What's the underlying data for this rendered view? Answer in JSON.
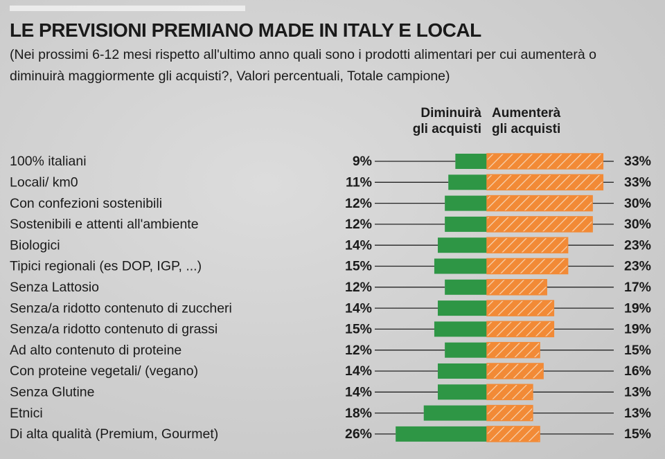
{
  "chart_data": {
    "type": "diverging-bar",
    "title": "LE PREVISIONI PREMIANO MADE IN ITALY E LOCAL",
    "subtitle": "(Nei prossimi 6-12 mesi rispetto all'ultimo anno quali sono i prodotti alimentari per cui aumenterà o diminuirà maggiormente gli acquisti?, Valori percentuali, Totale campione)",
    "categories": [
      "100% italiani",
      "Locali/ km0",
      "Con confezioni sostenibili",
      "Sostenibili e attenti all'ambiente",
      "Biologici",
      "Tipici regionali (es DOP, IGP, ...)",
      "Senza Lattosio",
      "Senza/a ridotto contenuto di zuccheri",
      "Senza/a ridotto contenuto di grassi",
      "Ad alto contenuto di proteine",
      "Con proteine vegetali/ (vegano)",
      "Senza Glutine",
      "Etnici",
      "Di alta qualità (Premium, Gourmet)"
    ],
    "series": [
      {
        "name": "Diminuirà\ngli acquisti",
        "color": "#2e9645",
        "values": [
          9,
          11,
          12,
          12,
          14,
          15,
          12,
          14,
          15,
          12,
          14,
          14,
          18,
          26
        ],
        "value_labels": [
          "9%",
          "11%",
          "12%",
          "12%",
          "14%",
          "15%",
          "12%",
          "14%",
          "15%",
          "12%",
          "14%",
          "14%",
          "18%",
          "26%"
        ]
      },
      {
        "name": "Aumenterà\ngli acquisti",
        "color": "#f28a36",
        "values": [
          33,
          33,
          30,
          30,
          23,
          23,
          17,
          19,
          19,
          15,
          16,
          13,
          13,
          15
        ],
        "value_labels": [
          "33%",
          "33%",
          "30%",
          "30%",
          "23%",
          "23%",
          "17%",
          "19%",
          "19%",
          "15%",
          "16%",
          "13%",
          "13%",
          "15%"
        ]
      }
    ]
  }
}
